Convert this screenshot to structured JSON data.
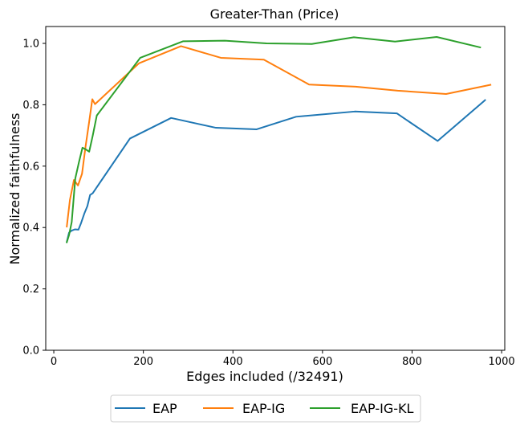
{
  "chart_data": {
    "type": "line",
    "title": "Greater-Than (Price)",
    "xlabel": "Edges included (/32491)",
    "ylabel": "Normalized faithfulness",
    "xlim": [
      -18,
      1007
    ],
    "ylim": [
      0.0,
      1.055
    ],
    "xticks": [
      0,
      200,
      400,
      600,
      800,
      1000
    ],
    "yticks": [
      0.0,
      0.2,
      0.4,
      0.6,
      0.8,
      1.0
    ],
    "xtick_labels": [
      "0",
      "200",
      "400",
      "600",
      "800",
      "1000"
    ],
    "ytick_labels": [
      "0.0",
      "0.2",
      "0.4",
      "0.6",
      "0.8",
      "1.0"
    ],
    "grid": false,
    "legend_position": "bottom-center-outside",
    "series": [
      {
        "name": "EAP",
        "color": "#1f77b4",
        "x": [
          29,
          34,
          40,
          47,
          55,
          61,
          68,
          75,
          81,
          87,
          94,
          170,
          262,
          362,
          453,
          541,
          672,
          766,
          857,
          963
        ],
        "y": [
          0.353,
          0.383,
          0.39,
          0.394,
          0.393,
          0.415,
          0.445,
          0.47,
          0.506,
          0.512,
          0.527,
          0.69,
          0.757,
          0.725,
          0.72,
          0.761,
          0.778,
          0.772,
          0.682,
          0.815
        ]
      },
      {
        "name": "EAP-IG",
        "color": "#ff7f0e",
        "x": [
          29,
          36,
          45,
          54,
          63,
          71,
          79,
          86,
          92,
          190,
          284,
          373,
          469,
          570,
          674,
          768,
          876,
          975
        ],
        "y": [
          0.403,
          0.49,
          0.555,
          0.537,
          0.575,
          0.665,
          0.745,
          0.818,
          0.802,
          0.935,
          0.991,
          0.953,
          0.947,
          0.866,
          0.859,
          0.846,
          0.835,
          0.865
        ]
      },
      {
        "name": "EAP-IG-KL",
        "color": "#2ca02c",
        "x": [
          29,
          34,
          40,
          48,
          56,
          64,
          71,
          79,
          87,
          96,
          193,
          289,
          382,
          475,
          576,
          670,
          762,
          855,
          952
        ],
        "y": [
          0.352,
          0.375,
          0.418,
          0.56,
          0.612,
          0.66,
          0.655,
          0.647,
          0.7,
          0.765,
          0.953,
          1.007,
          1.009,
          1.0,
          0.998,
          1.02,
          1.006,
          1.021,
          0.987
        ]
      }
    ]
  }
}
